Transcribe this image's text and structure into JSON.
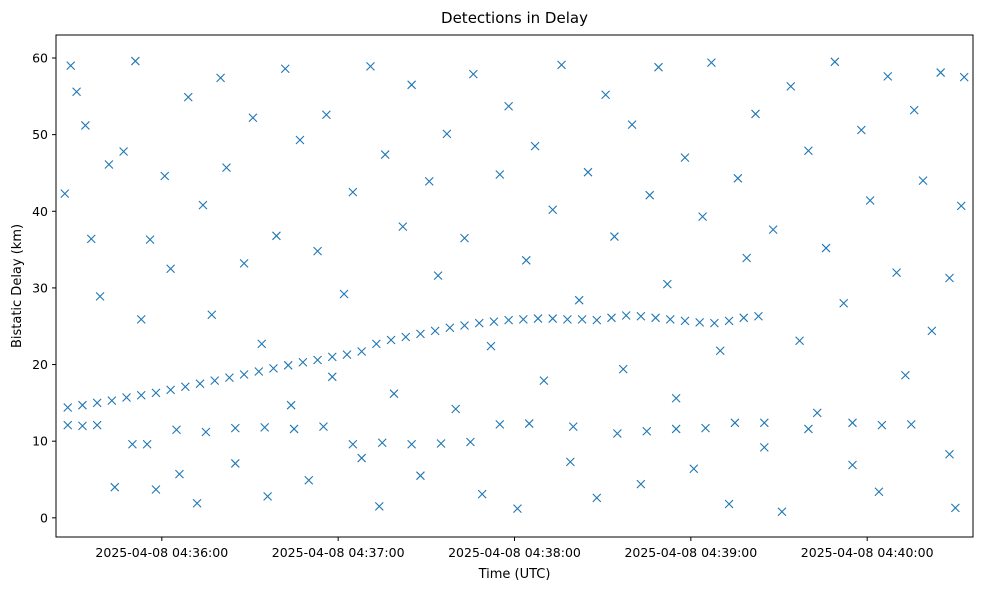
{
  "chart_data": {
    "type": "scatter",
    "title": "Detections in Delay",
    "xlabel": "Time (UTC)",
    "ylabel": "Bistatic Delay (km)",
    "xlim": [
      "2025-04-08 04:35:24",
      "2025-04-08 04:40:36"
    ],
    "ylim": [
      -2.5,
      63
    ],
    "x_ticks": [
      "2025-04-08 04:36:00",
      "2025-04-08 04:37:00",
      "2025-04-08 04:38:00",
      "2025-04-08 04:39:00",
      "2025-04-08 04:40:00"
    ],
    "y_ticks": [
      0,
      10,
      20,
      30,
      40,
      50,
      60
    ],
    "grid": false,
    "legend": "none",
    "marker": "x",
    "color": "#1f77b4",
    "series": [
      {
        "points": [
          [
            "2025-04-08 04:35:28",
            14.4
          ],
          [
            "2025-04-08 04:35:33",
            14.7
          ],
          [
            "2025-04-08 04:35:38",
            15.0
          ],
          [
            "2025-04-08 04:35:43",
            15.3
          ],
          [
            "2025-04-08 04:35:48",
            15.7
          ],
          [
            "2025-04-08 04:35:53",
            16.0
          ],
          [
            "2025-04-08 04:35:58",
            16.3
          ],
          [
            "2025-04-08 04:36:03",
            16.7
          ],
          [
            "2025-04-08 04:36:08",
            17.1
          ],
          [
            "2025-04-08 04:36:13",
            17.5
          ],
          [
            "2025-04-08 04:36:18",
            17.9
          ],
          [
            "2025-04-08 04:36:23",
            18.3
          ],
          [
            "2025-04-08 04:36:28",
            18.7
          ],
          [
            "2025-04-08 04:36:33",
            19.1
          ],
          [
            "2025-04-08 04:36:38",
            19.5
          ],
          [
            "2025-04-08 04:36:43",
            19.9
          ],
          [
            "2025-04-08 04:36:48",
            20.3
          ],
          [
            "2025-04-08 04:36:53",
            20.6
          ],
          [
            "2025-04-08 04:36:58",
            21.0
          ],
          [
            "2025-04-08 04:37:03",
            21.3
          ],
          [
            "2025-04-08 04:37:08",
            21.7
          ],
          [
            "2025-04-08 04:37:13",
            22.7
          ],
          [
            "2025-04-08 04:37:18",
            23.2
          ],
          [
            "2025-04-08 04:37:23",
            23.6
          ],
          [
            "2025-04-08 04:37:28",
            24.0
          ],
          [
            "2025-04-08 04:37:33",
            24.4
          ],
          [
            "2025-04-08 04:37:38",
            24.8
          ],
          [
            "2025-04-08 04:37:43",
            25.1
          ],
          [
            "2025-04-08 04:37:48",
            25.4
          ],
          [
            "2025-04-08 04:37:53",
            25.6
          ],
          [
            "2025-04-08 04:37:58",
            25.8
          ],
          [
            "2025-04-08 04:38:03",
            25.9
          ],
          [
            "2025-04-08 04:38:08",
            26.0
          ],
          [
            "2025-04-08 04:38:13",
            26.0
          ],
          [
            "2025-04-08 04:38:18",
            25.9
          ],
          [
            "2025-04-08 04:38:23",
            25.9
          ],
          [
            "2025-04-08 04:38:28",
            25.8
          ],
          [
            "2025-04-08 04:38:33",
            26.1
          ],
          [
            "2025-04-08 04:38:38",
            26.4
          ],
          [
            "2025-04-08 04:38:43",
            26.3
          ],
          [
            "2025-04-08 04:38:48",
            26.1
          ],
          [
            "2025-04-08 04:38:53",
            25.9
          ],
          [
            "2025-04-08 04:38:58",
            25.7
          ],
          [
            "2025-04-08 04:39:03",
            25.5
          ],
          [
            "2025-04-08 04:39:08",
            25.4
          ],
          [
            "2025-04-08 04:39:13",
            25.7
          ],
          [
            "2025-04-08 04:39:18",
            26.1
          ],
          [
            "2025-04-08 04:39:23",
            26.3
          ],
          [
            "2025-04-08 04:35:28",
            12.1
          ],
          [
            "2025-04-08 04:35:33",
            12.0
          ],
          [
            "2025-04-08 04:35:38",
            12.1
          ],
          [
            "2025-04-08 04:35:50",
            9.6
          ],
          [
            "2025-04-08 04:35:55",
            9.6
          ],
          [
            "2025-04-08 04:36:05",
            11.5
          ],
          [
            "2025-04-08 04:36:15",
            11.2
          ],
          [
            "2025-04-08 04:36:25",
            11.7
          ],
          [
            "2025-04-08 04:36:35",
            11.8
          ],
          [
            "2025-04-08 04:36:45",
            11.6
          ],
          [
            "2025-04-08 04:36:55",
            11.9
          ],
          [
            "2025-04-08 04:37:05",
            9.6
          ],
          [
            "2025-04-08 04:37:15",
            9.8
          ],
          [
            "2025-04-08 04:37:25",
            9.6
          ],
          [
            "2025-04-08 04:37:35",
            9.7
          ],
          [
            "2025-04-08 04:37:45",
            9.9
          ],
          [
            "2025-04-08 04:37:55",
            12.2
          ],
          [
            "2025-04-08 04:38:05",
            12.3
          ],
          [
            "2025-04-08 04:38:20",
            11.9
          ],
          [
            "2025-04-08 04:38:35",
            11.0
          ],
          [
            "2025-04-08 04:38:45",
            11.3
          ],
          [
            "2025-04-08 04:38:55",
            11.6
          ],
          [
            "2025-04-08 04:39:05",
            11.7
          ],
          [
            "2025-04-08 04:39:15",
            12.4
          ],
          [
            "2025-04-08 04:39:25",
            12.4
          ],
          [
            "2025-04-08 04:39:40",
            11.6
          ],
          [
            "2025-04-08 04:39:55",
            12.4
          ],
          [
            "2025-04-08 04:40:05",
            12.1
          ],
          [
            "2025-04-08 04:40:15",
            12.2
          ],
          [
            "2025-04-08 04:40:28",
            8.3
          ],
          [
            "2025-04-08 04:35:27",
            42.3
          ],
          [
            "2025-04-08 04:35:29",
            59.0
          ],
          [
            "2025-04-08 04:35:31",
            55.6
          ],
          [
            "2025-04-08 04:35:34",
            51.2
          ],
          [
            "2025-04-08 04:35:36",
            36.4
          ],
          [
            "2025-04-08 04:35:39",
            28.9
          ],
          [
            "2025-04-08 04:35:42",
            46.1
          ],
          [
            "2025-04-08 04:35:44",
            4.0
          ],
          [
            "2025-04-08 04:35:47",
            47.8
          ],
          [
            "2025-04-08 04:35:51",
            59.6
          ],
          [
            "2025-04-08 04:35:53",
            25.9
          ],
          [
            "2025-04-08 04:35:56",
            36.3
          ],
          [
            "2025-04-08 04:35:58",
            3.7
          ],
          [
            "2025-04-08 04:36:01",
            44.6
          ],
          [
            "2025-04-08 04:36:03",
            32.5
          ],
          [
            "2025-04-08 04:36:06",
            5.7
          ],
          [
            "2025-04-08 04:36:09",
            54.9
          ],
          [
            "2025-04-08 04:36:12",
            1.9
          ],
          [
            "2025-04-08 04:36:14",
            40.8
          ],
          [
            "2025-04-08 04:36:17",
            26.5
          ],
          [
            "2025-04-08 04:36:20",
            57.4
          ],
          [
            "2025-04-08 04:36:22",
            45.7
          ],
          [
            "2025-04-08 04:36:25",
            7.1
          ],
          [
            "2025-04-08 04:36:28",
            33.2
          ],
          [
            "2025-04-08 04:36:31",
            52.2
          ],
          [
            "2025-04-08 04:36:34",
            22.7
          ],
          [
            "2025-04-08 04:36:36",
            2.8
          ],
          [
            "2025-04-08 04:36:39",
            36.8
          ],
          [
            "2025-04-08 04:36:42",
            58.6
          ],
          [
            "2025-04-08 04:36:44",
            14.7
          ],
          [
            "2025-04-08 04:36:47",
            49.3
          ],
          [
            "2025-04-08 04:36:50",
            4.9
          ],
          [
            "2025-04-08 04:36:53",
            34.8
          ],
          [
            "2025-04-08 04:36:56",
            52.6
          ],
          [
            "2025-04-08 04:36:58",
            18.4
          ],
          [
            "2025-04-08 04:37:02",
            29.2
          ],
          [
            "2025-04-08 04:37:05",
            42.5
          ],
          [
            "2025-04-08 04:37:08",
            7.8
          ],
          [
            "2025-04-08 04:37:11",
            58.9
          ],
          [
            "2025-04-08 04:37:14",
            1.5
          ],
          [
            "2025-04-08 04:37:16",
            47.4
          ],
          [
            "2025-04-08 04:37:19",
            16.2
          ],
          [
            "2025-04-08 04:37:22",
            38.0
          ],
          [
            "2025-04-08 04:37:25",
            56.5
          ],
          [
            "2025-04-08 04:37:28",
            5.5
          ],
          [
            "2025-04-08 04:37:31",
            43.9
          ],
          [
            "2025-04-08 04:37:34",
            31.6
          ],
          [
            "2025-04-08 04:37:37",
            50.1
          ],
          [
            "2025-04-08 04:37:40",
            14.2
          ],
          [
            "2025-04-08 04:37:43",
            36.5
          ],
          [
            "2025-04-08 04:37:46",
            57.9
          ],
          [
            "2025-04-08 04:37:49",
            3.1
          ],
          [
            "2025-04-08 04:37:52",
            22.4
          ],
          [
            "2025-04-08 04:37:55",
            44.8
          ],
          [
            "2025-04-08 04:37:58",
            53.7
          ],
          [
            "2025-04-08 04:38:01",
            1.2
          ],
          [
            "2025-04-08 04:38:04",
            33.6
          ],
          [
            "2025-04-08 04:38:07",
            48.5
          ],
          [
            "2025-04-08 04:38:10",
            17.9
          ],
          [
            "2025-04-08 04:38:13",
            40.2
          ],
          [
            "2025-04-08 04:38:16",
            59.1
          ],
          [
            "2025-04-08 04:38:19",
            7.3
          ],
          [
            "2025-04-08 04:38:22",
            28.4
          ],
          [
            "2025-04-08 04:38:25",
            45.1
          ],
          [
            "2025-04-08 04:38:28",
            2.6
          ],
          [
            "2025-04-08 04:38:31",
            55.2
          ],
          [
            "2025-04-08 04:38:34",
            36.7
          ],
          [
            "2025-04-08 04:38:37",
            19.4
          ],
          [
            "2025-04-08 04:38:40",
            51.3
          ],
          [
            "2025-04-08 04:38:43",
            4.4
          ],
          [
            "2025-04-08 04:38:46",
            42.1
          ],
          [
            "2025-04-08 04:38:49",
            58.8
          ],
          [
            "2025-04-08 04:38:52",
            30.5
          ],
          [
            "2025-04-08 04:38:55",
            15.6
          ],
          [
            "2025-04-08 04:38:58",
            47.0
          ],
          [
            "2025-04-08 04:39:01",
            6.4
          ],
          [
            "2025-04-08 04:39:04",
            39.3
          ],
          [
            "2025-04-08 04:39:07",
            59.4
          ],
          [
            "2025-04-08 04:39:10",
            21.8
          ],
          [
            "2025-04-08 04:39:13",
            1.8
          ],
          [
            "2025-04-08 04:39:16",
            44.3
          ],
          [
            "2025-04-08 04:39:19",
            33.9
          ],
          [
            "2025-04-08 04:39:22",
            52.7
          ],
          [
            "2025-04-08 04:39:25",
            9.2
          ],
          [
            "2025-04-08 04:39:28",
            37.6
          ],
          [
            "2025-04-08 04:39:31",
            0.8
          ],
          [
            "2025-04-08 04:39:34",
            56.3
          ],
          [
            "2025-04-08 04:39:37",
            23.1
          ],
          [
            "2025-04-08 04:39:40",
            47.9
          ],
          [
            "2025-04-08 04:39:43",
            13.7
          ],
          [
            "2025-04-08 04:39:46",
            35.2
          ],
          [
            "2025-04-08 04:39:49",
            59.5
          ],
          [
            "2025-04-08 04:39:52",
            28.0
          ],
          [
            "2025-04-08 04:39:55",
            6.9
          ],
          [
            "2025-04-08 04:39:58",
            50.6
          ],
          [
            "2025-04-08 04:40:01",
            41.4
          ],
          [
            "2025-04-08 04:40:04",
            3.4
          ],
          [
            "2025-04-08 04:40:07",
            57.6
          ],
          [
            "2025-04-08 04:40:10",
            32.0
          ],
          [
            "2025-04-08 04:40:13",
            18.6
          ],
          [
            "2025-04-08 04:40:16",
            53.2
          ],
          [
            "2025-04-08 04:40:19",
            44.0
          ],
          [
            "2025-04-08 04:40:22",
            24.4
          ],
          [
            "2025-04-08 04:40:25",
            58.1
          ],
          [
            "2025-04-08 04:40:28",
            31.3
          ],
          [
            "2025-04-08 04:40:30",
            1.3
          ],
          [
            "2025-04-08 04:40:32",
            40.7
          ],
          [
            "2025-04-08 04:40:33",
            57.5
          ]
        ]
      }
    ]
  }
}
